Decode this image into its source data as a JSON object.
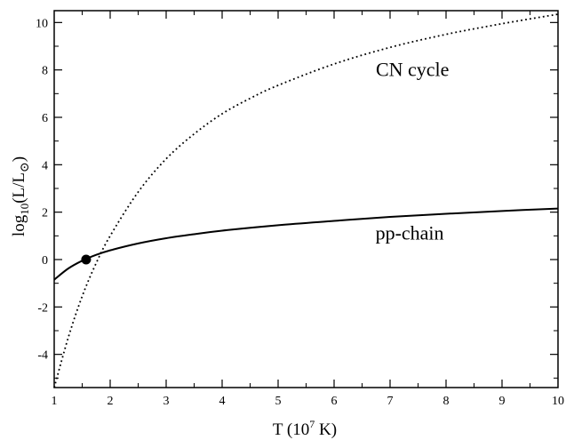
{
  "chart_data": {
    "type": "line",
    "title": "",
    "xlabel": "T (10^7 K)",
    "ylabel": "log10(L/L⊙)",
    "xlim": [
      1,
      10
    ],
    "ylim": [
      -5.4,
      10.5
    ],
    "x_ticks": [
      1,
      2,
      3,
      4,
      5,
      6,
      7,
      8,
      9,
      10
    ],
    "y_ticks": [
      -4,
      -2,
      0,
      2,
      4,
      6,
      8,
      10
    ],
    "grid": false,
    "legend": "none",
    "series": [
      {
        "name": "pp-chain",
        "style": "solid",
        "x": [
          1.0,
          1.25,
          1.5,
          1.75,
          2.0,
          2.5,
          3.0,
          3.5,
          4.0,
          5.0,
          6.0,
          7.0,
          8.0,
          9.0,
          10.0
        ],
        "y": [
          -0.85,
          -0.38,
          -0.05,
          0.2,
          0.39,
          0.68,
          0.9,
          1.07,
          1.22,
          1.45,
          1.63,
          1.8,
          1.93,
          2.05,
          2.15
        ]
      },
      {
        "name": "CN cycle",
        "style": "dotted",
        "x": [
          1.0,
          1.25,
          1.5,
          1.75,
          2.0,
          2.5,
          3.0,
          3.5,
          4.0,
          4.5,
          5.0,
          6.0,
          7.0,
          8.0,
          9.0,
          10.0
        ],
        "y": [
          -5.4,
          -3.3,
          -1.55,
          -0.15,
          1.0,
          2.85,
          4.25,
          5.3,
          6.15,
          6.8,
          7.35,
          8.25,
          8.95,
          9.5,
          9.95,
          10.35
        ]
      }
    ],
    "points": [
      {
        "x": 1.57,
        "y": 0.0,
        "marker": "filled-circle"
      }
    ],
    "annotations": [
      {
        "text": "CN cycle",
        "x": 7.4,
        "y": 7.75
      },
      {
        "text": "pp-chain",
        "x": 7.35,
        "y": 0.85
      }
    ],
    "colors": {
      "line": "#000000",
      "background": "#ffffff"
    }
  },
  "labels": {
    "x_main": "T (10",
    "x_sup": "7",
    "x_tail": " K)",
    "y_main": "log",
    "y_sub": "10",
    "y_mid": "(L/L",
    "y_symbol": "⊙",
    "y_tail": ")"
  }
}
